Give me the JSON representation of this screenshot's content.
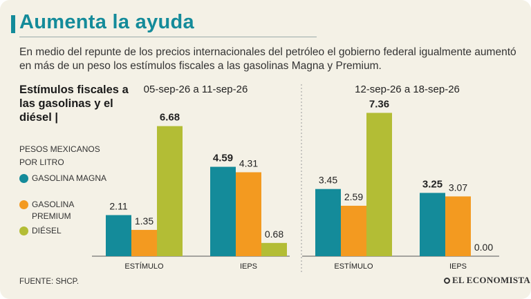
{
  "title": "Aumenta la ayuda",
  "subtitle": "En medio del repunte de los precios internacionales del petróleo el gobierno federal igualmente aumentó en más de un peso los estímulos fiscales a las gasolinas Magna y Premium.",
  "legend_title": "Estímulos fiscales a las gasolinas y el diésel |",
  "unit": "PESOS MEXICANOS POR LITRO",
  "source": "FUENTE: SHCP.",
  "logo_text": "EL ECONOMISTA",
  "colors": {
    "magna": "#148b9a",
    "premium": "#f39a20",
    "diesel": "#b3bd35",
    "title": "#148b9a"
  },
  "chart_data": {
    "type": "bar",
    "groups": [
      {
        "period": "05-sep-26 a 11-sep-26",
        "categories": [
          {
            "label": "ESTÍMULO",
            "values": [
              {
                "series": "GASOLINA MAGNA",
                "value": 2.11,
                "label": "2.11",
                "bold": false
              },
              {
                "series": "GASOLINA PREMIUM",
                "value": 1.35,
                "label": "1.35",
                "bold": false
              },
              {
                "series": "DIÉSEL",
                "value": 6.68,
                "label": "6.68",
                "bold": true
              }
            ]
          },
          {
            "label": "IEPS",
            "values": [
              {
                "series": "GASOLINA MAGNA",
                "value": 4.59,
                "label": "4.59",
                "bold": true
              },
              {
                "series": "GASOLINA PREMIUM",
                "value": 4.31,
                "label": "4.31",
                "bold": false
              },
              {
                "series": "DIÉSEL",
                "value": 0.68,
                "label": "0.68",
                "bold": false
              }
            ]
          }
        ]
      },
      {
        "period": "12-sep-26 a 18-sep-26",
        "categories": [
          {
            "label": "ESTÍMULO",
            "values": [
              {
                "series": "GASOLINA MAGNA",
                "value": 3.45,
                "label": "3.45",
                "bold": false
              },
              {
                "series": "GASOLINA PREMIUM",
                "value": 2.59,
                "label": "2.59",
                "bold": false
              },
              {
                "series": "DIÉSEL",
                "value": 7.36,
                "label": "7.36",
                "bold": true
              }
            ]
          },
          {
            "label": "IEPS",
            "values": [
              {
                "series": "GASOLINA MAGNA",
                "value": 3.25,
                "label": "3.25",
                "bold": true
              },
              {
                "series": "GASOLINA PREMIUM",
                "value": 3.07,
                "label": "3.07",
                "bold": false
              },
              {
                "series": "DIÉSEL",
                "value": 0.0,
                "label": "0.00",
                "bold": false
              }
            ]
          }
        ]
      }
    ],
    "series": [
      {
        "name": "GASOLINA MAGNA",
        "color": "#148b9a"
      },
      {
        "name": "GASOLINA PREMIUM",
        "color": "#f39a20"
      },
      {
        "name": "DIÉSEL",
        "color": "#b3bd35"
      }
    ],
    "ylim": [
      0,
      8
    ],
    "grid": false,
    "legend": "left"
  }
}
